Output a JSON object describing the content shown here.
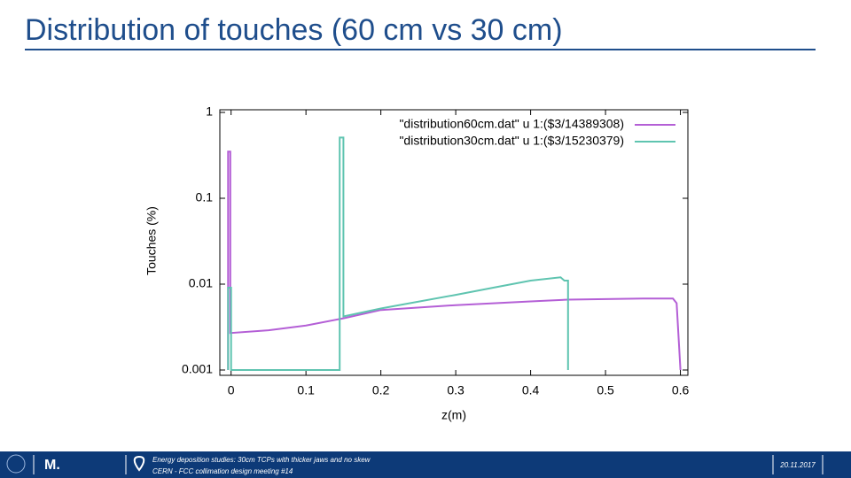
{
  "chart_data": {
    "type": "line",
    "title": "Distribution of touches (60 cm vs 30 cm)",
    "xlabel": "z(m)",
    "ylabel": "Touches (%)",
    "xlim": [
      -0.015,
      0.61
    ],
    "xticks": [
      0,
      0.1,
      0.2,
      0.3,
      0.4,
      0.5,
      0.6
    ],
    "ylim": [
      0.001,
      1
    ],
    "yticks": [
      0.001,
      0.01,
      0.1,
      1
    ],
    "ylog": true,
    "legend": "upper right",
    "series": [
      {
        "name": "\"distribution60cm.dat\" u 1:($3/14389308)",
        "color": "#b45fd6",
        "x": [
          -0.004,
          -0.004,
          -0.001,
          -0.001,
          0.05,
          0.1,
          0.15,
          0.2,
          0.3,
          0.4,
          0.45,
          0.55,
          0.59,
          0.595,
          0.6
        ],
        "values": [
          0.001,
          0.35,
          0.35,
          0.0027,
          0.0029,
          0.0033,
          0.004,
          0.005,
          0.0057,
          0.0063,
          0.0066,
          0.0068,
          0.0068,
          0.006,
          0.001
        ]
      },
      {
        "name": "\"distribution30cm.dat\" u 1:($3/15230379)",
        "color": "#5fc4b0",
        "x": [
          -0.004,
          -0.004,
          0.0,
          0.0,
          0.145,
          0.145,
          0.15,
          0.15,
          0.2,
          0.3,
          0.35,
          0.4,
          0.44,
          0.445,
          0.45,
          0.45
        ],
        "values": [
          0.001,
          0.0091,
          0.0091,
          0.001,
          0.001,
          0.51,
          0.51,
          0.0042,
          0.0052,
          0.0075,
          0.0091,
          0.011,
          0.012,
          0.011,
          0.011,
          0.001
        ]
      }
    ]
  },
  "footer": {
    "logo_text": "M.",
    "line1": "Energy deposition studies: 30cm TCPs with thicker jaws and no skew",
    "line2": "CERN - FCC collimation design meeting #14",
    "date": "20.11.2017"
  }
}
